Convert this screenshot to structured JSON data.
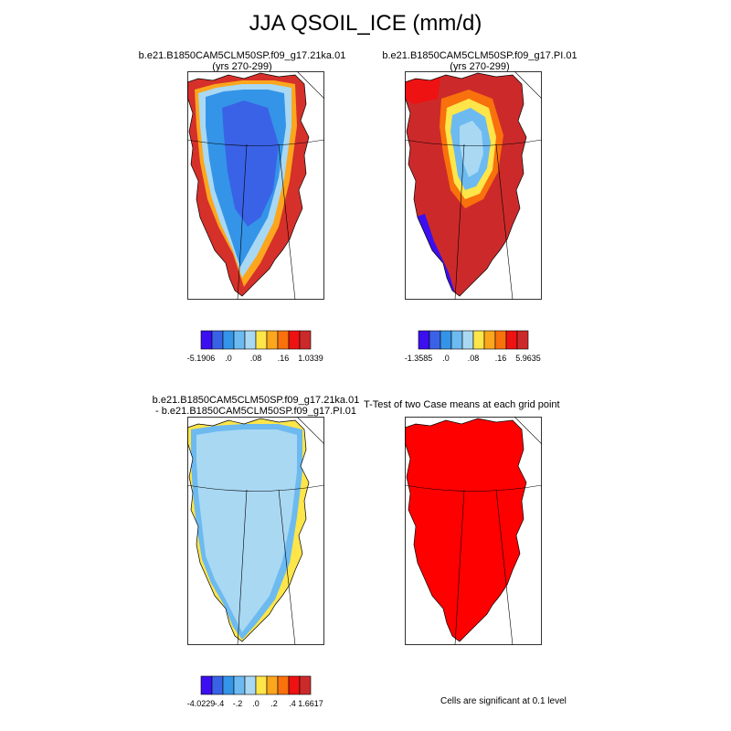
{
  "figure": {
    "title": "JJA QSOIL_ICE (mm/d)"
  },
  "chart_data": [
    {
      "type": "map",
      "id": "p1",
      "title_line1": "b.e21.B1850CAM5CLM50SP.f09_g17.21ka.01",
      "title_line2": "(yrs 270-299)",
      "colorbar": {
        "colors": [
          "#3b0ff0",
          "#3a62e6",
          "#3494e8",
          "#6cbaf0",
          "#a9d8f3",
          "#fde54a",
          "#fba61c",
          "#f8710c",
          "#ee1212",
          "#cc2a2a"
        ],
        "labels": [
          "-5.1906",
          ".0",
          ".08",
          ".16",
          "1.0339"
        ]
      }
    },
    {
      "type": "map",
      "id": "p2",
      "title_line1": "b.e21.B1850CAM5CLM50SP.f09_g17.PI.01",
      "title_line2": "(yrs 270-299)",
      "colorbar": {
        "colors": [
          "#3b0ff0",
          "#3a62e6",
          "#3494e8",
          "#6cbaf0",
          "#a9d8f3",
          "#fde54a",
          "#fba61c",
          "#f8710c",
          "#ee1212",
          "#cc2a2a"
        ],
        "labels": [
          "-1.3585",
          ".0",
          ".08",
          ".16",
          "5.9635"
        ]
      }
    },
    {
      "type": "map",
      "id": "p3",
      "title_line1": "b.e21.B1850CAM5CLM50SP.f09_g17.21ka.01",
      "title_line2": "- b.e21.B1850CAM5CLM50SP.f09_g17.PI.01",
      "colorbar": {
        "colors": [
          "#3b0ff0",
          "#3a62e6",
          "#3494e8",
          "#6cbaf0",
          "#a9d8f3",
          "#fde54a",
          "#fba61c",
          "#f8710c",
          "#ee1212",
          "#cc2a2a"
        ],
        "labels": [
          "-4.0229",
          "-.4",
          "-.2",
          ".0",
          ".2",
          ".4",
          "1.6617"
        ]
      }
    },
    {
      "type": "map",
      "id": "p4",
      "title_line1": "T-Test of two Case means at each grid point",
      "note": "Cells are significant at 0.1 level"
    }
  ]
}
